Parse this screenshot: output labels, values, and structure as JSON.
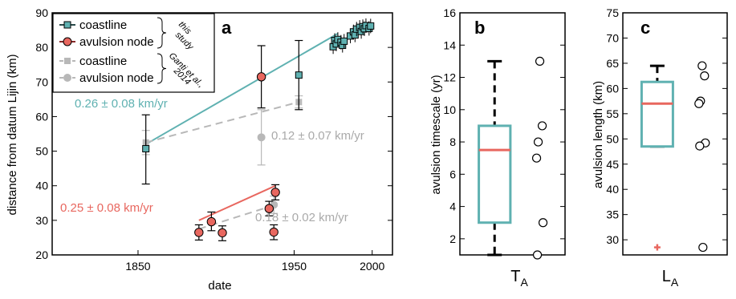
{
  "chart_data": [
    {
      "panel": "a",
      "type": "scatter",
      "xlabel": "date",
      "ylabel": "distance from datum Lijin (km)",
      "xlim": [
        1795,
        2013
      ],
      "ylim": [
        20,
        90
      ],
      "xticks": [
        1850,
        1950,
        2000
      ],
      "yticks": [
        20,
        30,
        40,
        50,
        60,
        70,
        80,
        90
      ],
      "legend_position": "top-left",
      "legend": [
        {
          "label": "coastline",
          "group": "this study"
        },
        {
          "label": "avulsion node",
          "group": "this study"
        },
        {
          "label": "coastline",
          "group": "Ganti et al., 2014"
        },
        {
          "label": "avulsion node",
          "group": "Ganti et al., 2014"
        }
      ],
      "legend_groups": {
        "this_study": "this study",
        "ganti": "Ganti et al., 2014"
      },
      "colors": {
        "coastline": "#5fb1b1",
        "avulsion": "#e8675f",
        "ganti": "#b8b8b8"
      },
      "series": {
        "coastline_this_study": [
          {
            "x": 1855,
            "y": 50.7,
            "yerr": [
              40.5,
              60.5
            ]
          },
          {
            "x": 1953,
            "y": 72.0,
            "yerr": [
              62.0,
              82.0
            ]
          },
          {
            "x": 1975,
            "y": 80.2
          },
          {
            "x": 1976,
            "y": 82.0
          },
          {
            "x": 1977,
            "y": 81.0
          },
          {
            "x": 1978,
            "y": 82.3
          },
          {
            "x": 1980,
            "y": 81.5
          },
          {
            "x": 1981,
            "y": 80.6
          },
          {
            "x": 1982,
            "y": 81.8
          },
          {
            "x": 1986,
            "y": 83.3
          },
          {
            "x": 1988,
            "y": 84.5
          },
          {
            "x": 1989,
            "y": 83.6
          },
          {
            "x": 1990,
            "y": 85.3
          },
          {
            "x": 1992,
            "y": 85.8
          },
          {
            "x": 1993,
            "y": 84.6
          },
          {
            "x": 1994,
            "y": 86.0
          },
          {
            "x": 1995,
            "y": 85.4
          },
          {
            "x": 1996,
            "y": 86.3
          },
          {
            "x": 1998,
            "y": 85.5
          },
          {
            "x": 1999,
            "y": 86.2
          }
        ],
        "avulsion_this_study": [
          {
            "x": 1889,
            "y": 26.5,
            "yerr": [
              24.3,
              28.7
            ]
          },
          {
            "x": 1897,
            "y": 29.6,
            "yerr": [
              27.0,
              32.4
            ]
          },
          {
            "x": 1904,
            "y": 26.4,
            "yerr": [
              24.1,
              28.4
            ]
          },
          {
            "x": 1929,
            "y": 71.5,
            "yerr": [
              62.5,
              80.5
            ]
          },
          {
            "x": 1934,
            "y": 33.4,
            "yerr": [
              31.3,
              35.5
            ]
          },
          {
            "x": 1937,
            "y": 26.6,
            "yerr": [
              24.4,
              28.7
            ]
          },
          {
            "x": 1938,
            "y": 38.1,
            "yerr": [
              35.9,
              40.3
            ]
          }
        ],
        "coastline_ganti": [
          {
            "x": 1855,
            "y": 52.5,
            "yerr": [
              49.0,
              56.0
            ]
          },
          {
            "x": 1953,
            "y": 64.2,
            "yerr": [
              62.5,
              66.0
            ]
          }
        ],
        "avulsion_ganti": [
          {
            "x": 1929,
            "y": 54.0,
            "yerr": [
              46.0,
              62.0
            ]
          },
          {
            "x": 1937,
            "y": 34.5,
            "yerr": [
              32.0,
              37.0
            ]
          }
        ]
      },
      "trend_lines": [
        {
          "label": "0.26 ± 0.08 km/yr",
          "from": [
            1855,
            52.0
          ],
          "to": [
            1978,
            84.0
          ],
          "color": "#5fb1b1",
          "dashed": false
        },
        {
          "label": "0.12 ± 0.07 km/yr",
          "from": [
            1855,
            52.5
          ],
          "to": [
            1953,
            64.2
          ],
          "color": "#b8b8b8",
          "dashed": true
        },
        {
          "label": "0.25 ± 0.08 km/yr",
          "from": [
            1889,
            30.0
          ],
          "to": [
            1938,
            40.0
          ],
          "color": "#e8675f",
          "dashed": false
        },
        {
          "label": "0.18 ± 0.02 km/yr",
          "from": [
            1889,
            27.5
          ],
          "to": [
            1938,
            34.5
          ],
          "color": "#b8b8b8",
          "dashed": true
        }
      ]
    },
    {
      "panel": "b",
      "type": "box",
      "ylabel": "avulsion timescale (yr)",
      "xlabel_main": "T",
      "xlabel_sub": "A",
      "ylim": [
        1,
        16
      ],
      "yticks": [
        2,
        4,
        6,
        8,
        10,
        12,
        14,
        16
      ],
      "box": {
        "whisker_low": 1,
        "q1": 3,
        "median": 7.5,
        "q3": 9,
        "whisker_high": 13
      },
      "points": [
        13,
        9,
        8,
        7,
        3,
        1
      ],
      "outliers": []
    },
    {
      "panel": "c",
      "type": "box",
      "ylabel": "avulsion length (km)",
      "xlabel_main": "L",
      "xlabel_sub": "A",
      "ylim": [
        27,
        75
      ],
      "yticks": [
        30,
        35,
        40,
        45,
        50,
        55,
        60,
        65,
        70,
        75
      ],
      "box": {
        "whisker_low": 48.5,
        "q1": 48.5,
        "median": 57,
        "q3": 61.3,
        "whisker_high": 64.5
      },
      "points": [
        64.5,
        62.5,
        57.5,
        57.0,
        49.2,
        48.6,
        28.5
      ],
      "outliers": [
        28.5
      ]
    }
  ]
}
